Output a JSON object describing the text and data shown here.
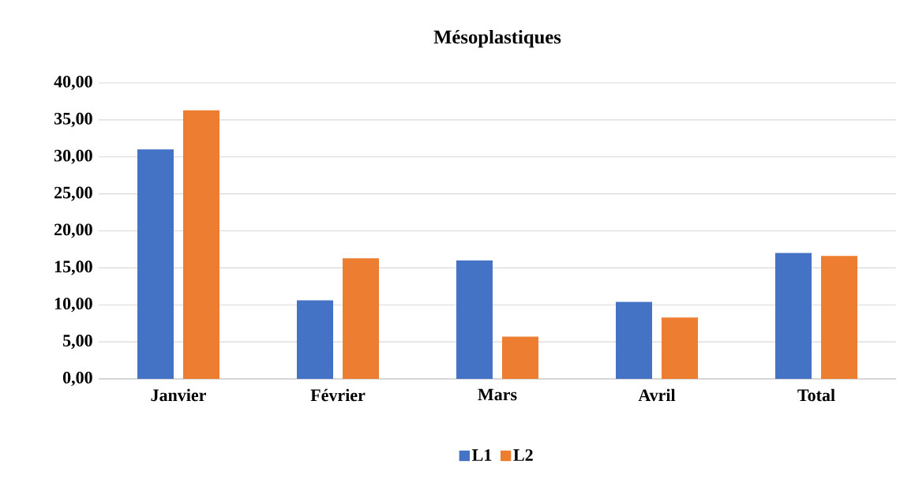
{
  "chart_data": {
    "type": "bar",
    "title": "Mésoplastiques",
    "categories": [
      "Janvier",
      "Février",
      "Mars",
      "Avril",
      "Total"
    ],
    "series": [
      {
        "name": "L1",
        "color": "#4472c4",
        "values": [
          31.0,
          10.6,
          16.0,
          10.4,
          17.0
        ]
      },
      {
        "name": "L2",
        "color": "#ed7d31",
        "values": [
          36.3,
          16.3,
          5.7,
          8.3,
          16.6
        ]
      }
    ],
    "ylim": [
      0,
      40
    ],
    "yticks": [
      {
        "value": 0,
        "label": "0,00"
      },
      {
        "value": 5,
        "label": "5,00"
      },
      {
        "value": 10,
        "label": "10,00"
      },
      {
        "value": 15,
        "label": "15,00"
      },
      {
        "value": 20,
        "label": "20,00"
      },
      {
        "value": 25,
        "label": "25,00"
      },
      {
        "value": 30,
        "label": "30,00"
      },
      {
        "value": 35,
        "label": "35,00"
      },
      {
        "value": 40,
        "label": "40,00"
      }
    ],
    "grid": "y",
    "legend": "bottom"
  }
}
